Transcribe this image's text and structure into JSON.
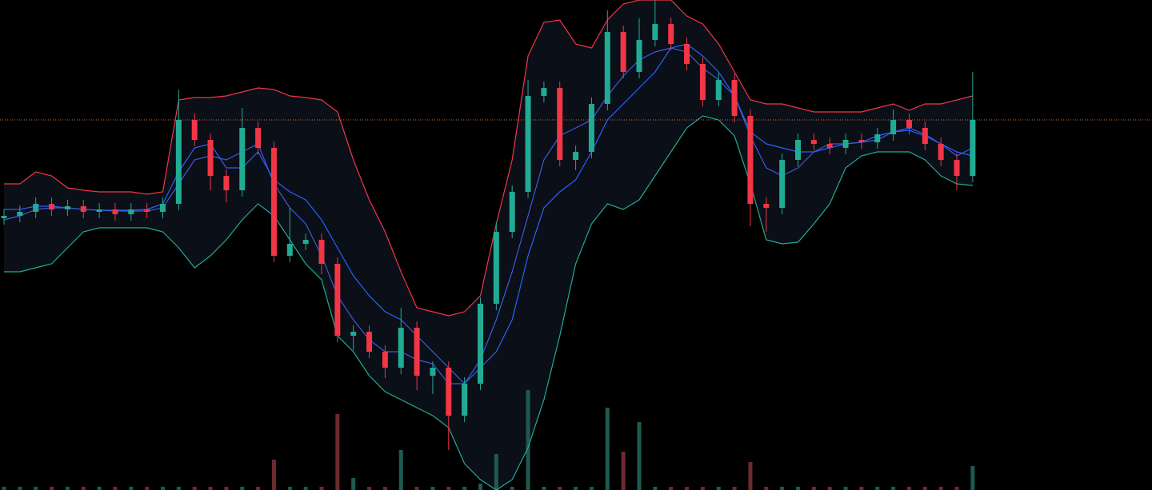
{
  "chart_data": {
    "type": "candlestick",
    "ylim": [
      0,
      613
    ],
    "volume_ylim": [
      0,
      613
    ],
    "up_color": "#22ab94",
    "down_color": "#f23645",
    "volume_up_color": "#1e5a52",
    "volume_down_color": "#6b2b2e",
    "open": [
      340,
      343,
      348,
      358,
      351,
      355,
      348,
      351,
      345,
      351,
      348,
      358,
      463,
      438,
      393,
      375,
      453,
      428,
      293,
      308,
      313,
      283,
      193,
      198,
      173,
      153,
      203,
      143,
      153,
      93,
      133,
      233,
      323,
      373,
      493,
      503,
      413,
      423,
      483,
      573,
      523,
      563,
      583,
      558,
      533,
      488,
      513,
      468,
      358,
      353,
      413,
      438,
      433,
      428,
      438,
      435,
      445,
      463,
      453,
      433,
      413,
      393
    ],
    "high": [
      351,
      356,
      366,
      366,
      363,
      363,
      359,
      359,
      359,
      359,
      366,
      501,
      471,
      446,
      401,
      478,
      461,
      436,
      353,
      321,
      321,
      291,
      206,
      206,
      181,
      228,
      211,
      161,
      161,
      141,
      241,
      335,
      381,
      513,
      511,
      511,
      431,
      491,
      600,
      581,
      590,
      613,
      591,
      566,
      541,
      521,
      521,
      476,
      366,
      421,
      446,
      446,
      441,
      446,
      446,
      453,
      476,
      471,
      461,
      441,
      421,
      523
    ],
    "low": [
      332,
      335,
      340,
      343,
      343,
      340,
      340,
      337,
      337,
      340,
      340,
      350,
      430,
      375,
      360,
      367,
      420,
      285,
      285,
      300,
      270,
      185,
      175,
      165,
      140,
      145,
      125,
      120,
      50,
      85,
      125,
      225,
      315,
      365,
      485,
      405,
      400,
      415,
      475,
      515,
      515,
      555,
      550,
      525,
      480,
      480,
      460,
      330,
      323,
      345,
      405,
      425,
      420,
      420,
      427,
      427,
      437,
      445,
      425,
      405,
      375,
      385
    ],
    "close": [
      343,
      348,
      358,
      351,
      355,
      348,
      351,
      345,
      351,
      348,
      358,
      463,
      438,
      393,
      375,
      453,
      428,
      293,
      308,
      313,
      283,
      193,
      198,
      173,
      153,
      203,
      143,
      153,
      93,
      133,
      233,
      323,
      373,
      493,
      503,
      413,
      423,
      483,
      573,
      523,
      563,
      583,
      558,
      533,
      488,
      513,
      468,
      358,
      353,
      413,
      438,
      433,
      428,
      438,
      435,
      445,
      463,
      453,
      433,
      413,
      393,
      463
    ],
    "volume": [
      4,
      4,
      4,
      4,
      4,
      4,
      4,
      4,
      4,
      4,
      4,
      4,
      4,
      4,
      4,
      4,
      4,
      38,
      4,
      4,
      4,
      95,
      15,
      4,
      4,
      50,
      4,
      4,
      4,
      4,
      8,
      45,
      4,
      125,
      4,
      4,
      4,
      4,
      103,
      48,
      85,
      4,
      4,
      4,
      4,
      4,
      4,
      35,
      4,
      4,
      4,
      4,
      4,
      4,
      4,
      4,
      4,
      4,
      4,
      4,
      4,
      30
    ],
    "bands": [
      {
        "name": "upper",
        "color": "#f23645",
        "values": [
          383,
          383,
          398,
          393,
          378,
          375,
          373,
          373,
          373,
          370,
          373,
          488,
          491,
          491,
          493,
          498,
          503,
          501,
          493,
          491,
          488,
          473,
          413,
          363,
          323,
          273,
          228,
          223,
          218,
          223,
          243,
          333,
          413,
          543,
          585,
          588,
          558,
          553,
          588,
          608,
          613,
          613,
          613,
          593,
          583,
          558,
          523,
          488,
          483,
          483,
          478,
          473,
          473,
          473,
          473,
          478,
          483,
          475,
          483,
          483,
          488,
          493
        ]
      },
      {
        "name": "middle",
        "color": "#2962ff",
        "values": [
          351,
          351,
          355,
          355,
          353,
          351,
          350,
          350,
          350,
          351,
          358,
          398,
          428,
          433,
          403,
          403,
          423,
          388,
          373,
          363,
          338,
          303,
          268,
          243,
          223,
          213,
          193,
          173,
          153,
          133,
          153,
          173,
          213,
          293,
          353,
          373,
          388,
          423,
          463,
          483,
          503,
          523,
          553,
          558,
          543,
          523,
          493,
          448,
          433,
          428,
          423,
          423,
          428,
          433,
          435,
          443,
          448,
          450,
          443,
          433,
          423,
          418
        ]
      },
      {
        "name": "lower",
        "color": "#22ab94",
        "values": [
          273,
          273,
          278,
          283,
          303,
          323,
          328,
          328,
          328,
          328,
          323,
          303,
          278,
          293,
          313,
          338,
          358,
          343,
          313,
          283,
          263,
          193,
          173,
          143,
          123,
          113,
          103,
          93,
          78,
          33,
          13,
          0,
          13,
          53,
          113,
          193,
          283,
          333,
          358,
          351,
          363,
          393,
          423,
          453,
          468,
          463,
          443,
          383,
          313,
          308,
          310,
          333,
          358,
          403,
          418,
          423,
          423,
          423,
          413,
          393,
          383,
          381
        ]
      },
      {
        "name": "fast",
        "color": "#3b5bdb",
        "values": [
          338,
          343,
          351,
          353,
          353,
          351,
          350,
          349,
          349,
          349,
          353,
          383,
          413,
          418,
          413,
          423,
          433,
          383,
          353,
          333,
          293,
          243,
          213,
          188,
          173,
          173,
          163,
          158,
          133,
          133,
          163,
          213,
          273,
          343,
          413,
          443,
          453,
          463,
          493,
          518,
          538,
          548,
          553,
          548,
          528,
          513,
          493,
          443,
          403,
          393,
          403,
          423,
          433,
          433,
          435,
          438,
          448,
          453,
          445,
          433,
          418,
          428
        ]
      }
    ]
  }
}
